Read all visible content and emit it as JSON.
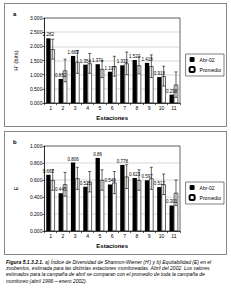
{
  "chart_data": [
    {
      "type": "bar",
      "title": "a",
      "x_label": "Estaciones",
      "y_label": "H' (bits)",
      "categories": [
        "1",
        "2",
        "3",
        "4",
        "5",
        "6",
        "7",
        "8",
        "9",
        "10",
        "11"
      ],
      "series": [
        {
          "name": "Abr-02",
          "color": "#000000",
          "data_labels": true,
          "values": [
            2.282,
            0.852,
            1.663,
            1.354,
            1.371,
            1.107,
            1.332,
            1.523,
            1.418,
            0.918,
            0.298
          ]
        },
        {
          "name": "Promedio",
          "color": "#ffffff",
          "values": [
            1.9,
            1.15,
            1.45,
            1.4,
            1.2,
            1.3,
            1.4,
            1.33,
            1.3,
            0.95,
            0.65
          ],
          "errors": [
            0.35,
            0.4,
            0.4,
            0.35,
            0.3,
            0.35,
            0.4,
            0.3,
            0.4,
            0.35,
            0.45
          ]
        }
      ],
      "ylim": [
        0,
        3
      ],
      "yticks": [
        {
          "value": 0,
          "label": "0.000"
        },
        {
          "value": 0.5,
          "label": "0.500"
        },
        {
          "value": 1,
          "label": "1.000"
        },
        {
          "value": 1.5,
          "label": "1.500"
        },
        {
          "value": 2,
          "label": "2.000"
        },
        {
          "value": 2.5,
          "label": "2.500"
        },
        {
          "value": 3,
          "label": "3.000"
        }
      ],
      "grid": true,
      "legend": "right"
    },
    {
      "type": "bar",
      "title": "b",
      "x_label": "Estaciones",
      "y_label": "E",
      "categories": [
        "1",
        "2",
        "3",
        "4",
        "5",
        "6",
        "7",
        "8",
        "9",
        "10",
        "11"
      ],
      "series": [
        {
          "name": "Abr-02",
          "color": "#000000",
          "data_labels": true,
          "values": [
            0.662,
            0.445,
            0.806,
            0.521,
            0.86,
            0.548,
            0.778,
            0.623,
            0.597,
            0.517,
            0.301
          ]
        },
        {
          "name": "Promedio",
          "color": "#ffffff",
          "values": [
            0.6,
            0.55,
            0.62,
            0.58,
            0.6,
            0.57,
            0.64,
            0.6,
            0.62,
            0.55,
            0.45
          ],
          "errors": [
            0.12,
            0.14,
            0.13,
            0.12,
            0.12,
            0.13,
            0.14,
            0.12,
            0.13,
            0.12,
            0.15
          ]
        }
      ],
      "ylim": [
        0,
        1
      ],
      "yticks": [
        {
          "value": 0,
          "label": "0.000"
        },
        {
          "value": 0.2,
          "label": "0.200"
        },
        {
          "value": 0.4,
          "label": "0.400"
        },
        {
          "value": 0.6,
          "label": "0.600"
        },
        {
          "value": 0.8,
          "label": "0.800"
        },
        {
          "value": 1,
          "label": "1.000"
        }
      ],
      "grid": true,
      "legend": "right"
    }
  ],
  "caption": {
    "label": "Figura 5.1.3.2.1.",
    "text": "a) Índice de Diversidad de Shannon-Wiener (H') y b) Equitabilidad (E) en el zoobentos, estimada para las distintas estaciones monitoreadas. Abril del 2002. Los valores estimados para la campaña de abril se comparan con el promedio de toda la campaña de monitoreo (abril 1996 – enero 2002)."
  }
}
